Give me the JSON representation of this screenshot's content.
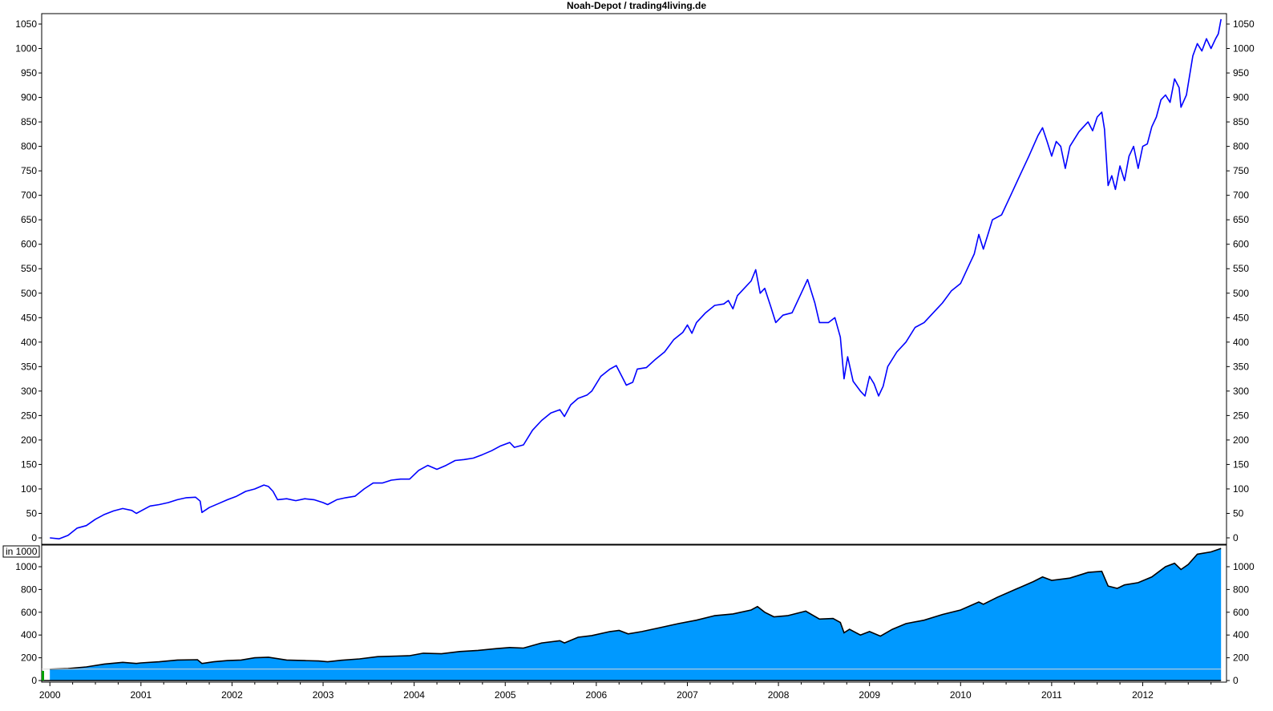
{
  "chart_data": [
    {
      "type": "line",
      "title": "Noah-Depot / trading4living.de",
      "ylim": [
        0,
        1060
      ],
      "y_ticks": [
        0,
        50,
        100,
        150,
        200,
        250,
        300,
        350,
        400,
        450,
        500,
        550,
        600,
        650,
        700,
        750,
        800,
        850,
        900,
        950,
        1000,
        1050
      ],
      "y_tick_labels": [
        "0",
        "50",
        "100",
        "150",
        "200",
        "250",
        "300",
        "350",
        "400",
        "450",
        "500",
        "550",
        "600",
        "650",
        "700",
        "750",
        "800",
        "850",
        "900",
        "950",
        "1000",
        "1050"
      ],
      "x_ticks": [
        2000,
        2001,
        2002,
        2003,
        2004,
        2005,
        2006,
        2007,
        2008,
        2009,
        2010,
        2011,
        2012
      ],
      "x_tick_labels": [
        "2000",
        "2001",
        "2002",
        "2003",
        "2004",
        "2005",
        "2006",
        "2007",
        "2008",
        "2009",
        "2010",
        "2011",
        "2012"
      ],
      "grid": false,
      "series": [
        {
          "color": "#0000ff",
          "points": [
            [
              2000.0,
              0
            ],
            [
              2000.1,
              -2
            ],
            [
              2000.2,
              5
            ],
            [
              2000.3,
              20
            ],
            [
              2000.4,
              25
            ],
            [
              2000.5,
              38
            ],
            [
              2000.6,
              48
            ],
            [
              2000.7,
              55
            ],
            [
              2000.8,
              60
            ],
            [
              2000.9,
              56
            ],
            [
              2000.95,
              50
            ],
            [
              2001.0,
              55
            ],
            [
              2001.1,
              65
            ],
            [
              2001.2,
              68
            ],
            [
              2001.3,
              72
            ],
            [
              2001.4,
              78
            ],
            [
              2001.5,
              82
            ],
            [
              2001.6,
              83
            ],
            [
              2001.65,
              75
            ],
            [
              2001.67,
              52
            ],
            [
              2001.75,
              62
            ],
            [
              2001.85,
              70
            ],
            [
              2001.95,
              78
            ],
            [
              2002.05,
              85
            ],
            [
              2002.15,
              95
            ],
            [
              2002.25,
              100
            ],
            [
              2002.35,
              108
            ],
            [
              2002.4,
              105
            ],
            [
              2002.45,
              95
            ],
            [
              2002.5,
              78
            ],
            [
              2002.6,
              80
            ],
            [
              2002.7,
              76
            ],
            [
              2002.8,
              80
            ],
            [
              2002.9,
              78
            ],
            [
              2003.0,
              72
            ],
            [
              2003.05,
              68
            ],
            [
              2003.15,
              78
            ],
            [
              2003.25,
              82
            ],
            [
              2003.35,
              85
            ],
            [
              2003.45,
              100
            ],
            [
              2003.55,
              112
            ],
            [
              2003.65,
              112
            ],
            [
              2003.75,
              118
            ],
            [
              2003.85,
              120
            ],
            [
              2003.95,
              120
            ],
            [
              2004.05,
              138
            ],
            [
              2004.15,
              148
            ],
            [
              2004.25,
              140
            ],
            [
              2004.35,
              148
            ],
            [
              2004.45,
              158
            ],
            [
              2004.55,
              160
            ],
            [
              2004.65,
              163
            ],
            [
              2004.75,
              170
            ],
            [
              2004.85,
              178
            ],
            [
              2004.95,
              188
            ],
            [
              2005.05,
              195
            ],
            [
              2005.1,
              185
            ],
            [
              2005.2,
              190
            ],
            [
              2005.3,
              220
            ],
            [
              2005.4,
              240
            ],
            [
              2005.5,
              255
            ],
            [
              2005.6,
              262
            ],
            [
              2005.65,
              248
            ],
            [
              2005.72,
              272
            ],
            [
              2005.8,
              285
            ],
            [
              2005.9,
              292
            ],
            [
              2005.95,
              300
            ],
            [
              2006.05,
              330
            ],
            [
              2006.15,
              345
            ],
            [
              2006.22,
              352
            ],
            [
              2006.28,
              330
            ],
            [
              2006.33,
              312
            ],
            [
              2006.4,
              318
            ],
            [
              2006.45,
              345
            ],
            [
              2006.55,
              348
            ],
            [
              2006.65,
              365
            ],
            [
              2006.75,
              380
            ],
            [
              2006.85,
              405
            ],
            [
              2006.95,
              420
            ],
            [
              2007.0,
              435
            ],
            [
              2007.05,
              418
            ],
            [
              2007.1,
              440
            ],
            [
              2007.2,
              460
            ],
            [
              2007.3,
              475
            ],
            [
              2007.4,
              478
            ],
            [
              2007.45,
              485
            ],
            [
              2007.5,
              468
            ],
            [
              2007.55,
              495
            ],
            [
              2007.6,
              505
            ],
            [
              2007.7,
              525
            ],
            [
              2007.75,
              548
            ],
            [
              2007.8,
              500
            ],
            [
              2007.85,
              510
            ],
            [
              2007.92,
              470
            ],
            [
              2007.97,
              440
            ],
            [
              2008.05,
              455
            ],
            [
              2008.15,
              460
            ],
            [
              2008.25,
              500
            ],
            [
              2008.32,
              528
            ],
            [
              2008.4,
              480
            ],
            [
              2008.45,
              440
            ],
            [
              2008.55,
              440
            ],
            [
              2008.62,
              450
            ],
            [
              2008.68,
              410
            ],
            [
              2008.72,
              325
            ],
            [
              2008.76,
              370
            ],
            [
              2008.82,
              320
            ],
            [
              2008.9,
              300
            ],
            [
              2008.95,
              290
            ],
            [
              2009.0,
              330
            ],
            [
              2009.05,
              315
            ],
            [
              2009.1,
              290
            ],
            [
              2009.15,
              310
            ],
            [
              2009.2,
              350
            ],
            [
              2009.3,
              380
            ],
            [
              2009.4,
              400
            ],
            [
              2009.5,
              430
            ],
            [
              2009.6,
              440
            ],
            [
              2009.7,
              460
            ],
            [
              2009.8,
              480
            ],
            [
              2009.9,
              505
            ],
            [
              2010.0,
              520
            ],
            [
              2010.1,
              560
            ],
            [
              2010.15,
              580
            ],
            [
              2010.2,
              620
            ],
            [
              2010.25,
              590
            ],
            [
              2010.3,
              620
            ],
            [
              2010.35,
              650
            ],
            [
              2010.45,
              660
            ],
            [
              2010.55,
              700
            ],
            [
              2010.65,
              740
            ],
            [
              2010.75,
              780
            ],
            [
              2010.85,
              822
            ],
            [
              2010.9,
              838
            ],
            [
              2010.95,
              810
            ],
            [
              2011.0,
              780
            ],
            [
              2011.05,
              810
            ],
            [
              2011.1,
              800
            ],
            [
              2011.15,
              755
            ],
            [
              2011.2,
              800
            ],
            [
              2011.3,
              830
            ],
            [
              2011.4,
              850
            ],
            [
              2011.45,
              832
            ],
            [
              2011.5,
              860
            ],
            [
              2011.55,
              870
            ],
            [
              2011.58,
              835
            ],
            [
              2011.62,
              720
            ],
            [
              2011.66,
              740
            ],
            [
              2011.7,
              712
            ],
            [
              2011.75,
              760
            ],
            [
              2011.8,
              730
            ],
            [
              2011.85,
              780
            ],
            [
              2011.9,
              800
            ],
            [
              2011.95,
              755
            ],
            [
              2012.0,
              800
            ],
            [
              2012.05,
              805
            ],
            [
              2012.1,
              840
            ],
            [
              2012.15,
              860
            ],
            [
              2012.2,
              895
            ],
            [
              2012.25,
              905
            ],
            [
              2012.3,
              890
            ],
            [
              2012.35,
              938
            ],
            [
              2012.4,
              920
            ],
            [
              2012.42,
              880
            ],
            [
              2012.48,
              905
            ],
            [
              2012.55,
              985
            ],
            [
              2012.6,
              1010
            ],
            [
              2012.65,
              995
            ],
            [
              2012.7,
              1020
            ],
            [
              2012.75,
              1000
            ],
            [
              2012.8,
              1020
            ],
            [
              2012.83,
              1030
            ],
            [
              2012.86,
              1060
            ]
          ]
        }
      ]
    },
    {
      "type": "area",
      "unit_label": "in 1000",
      "ylim": [
        0,
        1150
      ],
      "y_ticks": [
        0,
        200,
        400,
        600,
        800,
        1000
      ],
      "y_tick_labels": [
        "0",
        "200",
        "400",
        "600",
        "800",
        "1000"
      ],
      "reference_line": 100,
      "grid": false,
      "series": [
        {
          "color": "#0099ff",
          "points": [
            [
              2000.0,
              100
            ],
            [
              2000.2,
              105
            ],
            [
              2000.4,
              120
            ],
            [
              2000.6,
              145
            ],
            [
              2000.8,
              160
            ],
            [
              2000.95,
              150
            ],
            [
              2001.0,
              155
            ],
            [
              2001.2,
              165
            ],
            [
              2001.4,
              180
            ],
            [
              2001.62,
              183
            ],
            [
              2001.67,
              150
            ],
            [
              2001.8,
              165
            ],
            [
              2001.95,
              175
            ],
            [
              2002.1,
              180
            ],
            [
              2002.25,
              200
            ],
            [
              2002.4,
              205
            ],
            [
              2002.6,
              180
            ],
            [
              2002.8,
              175
            ],
            [
              2002.95,
              172
            ],
            [
              2003.05,
              165
            ],
            [
              2003.2,
              178
            ],
            [
              2003.4,
              190
            ],
            [
              2003.6,
              210
            ],
            [
              2003.8,
              215
            ],
            [
              2003.95,
              218
            ],
            [
              2004.1,
              240
            ],
            [
              2004.3,
              235
            ],
            [
              2004.5,
              255
            ],
            [
              2004.7,
              265
            ],
            [
              2004.9,
              280
            ],
            [
              2005.05,
              290
            ],
            [
              2005.2,
              285
            ],
            [
              2005.4,
              330
            ],
            [
              2005.6,
              350
            ],
            [
              2005.65,
              330
            ],
            [
              2005.8,
              380
            ],
            [
              2005.95,
              395
            ],
            [
              2006.15,
              430
            ],
            [
              2006.25,
              440
            ],
            [
              2006.35,
              410
            ],
            [
              2006.5,
              430
            ],
            [
              2006.7,
              465
            ],
            [
              2006.9,
              500
            ],
            [
              2007.1,
              530
            ],
            [
              2007.3,
              570
            ],
            [
              2007.5,
              585
            ],
            [
              2007.7,
              620
            ],
            [
              2007.77,
              650
            ],
            [
              2007.85,
              600
            ],
            [
              2007.95,
              560
            ],
            [
              2008.1,
              570
            ],
            [
              2008.3,
              610
            ],
            [
              2008.45,
              540
            ],
            [
              2008.6,
              545
            ],
            [
              2008.68,
              510
            ],
            [
              2008.72,
              420
            ],
            [
              2008.78,
              450
            ],
            [
              2008.9,
              400
            ],
            [
              2009.0,
              430
            ],
            [
              2009.12,
              390
            ],
            [
              2009.25,
              450
            ],
            [
              2009.4,
              500
            ],
            [
              2009.6,
              530
            ],
            [
              2009.8,
              580
            ],
            [
              2010.0,
              620
            ],
            [
              2010.2,
              690
            ],
            [
              2010.25,
              670
            ],
            [
              2010.4,
              730
            ],
            [
              2010.6,
              800
            ],
            [
              2010.8,
              870
            ],
            [
              2010.9,
              910
            ],
            [
              2011.0,
              880
            ],
            [
              2011.2,
              900
            ],
            [
              2011.4,
              950
            ],
            [
              2011.55,
              960
            ],
            [
              2011.62,
              830
            ],
            [
              2011.72,
              810
            ],
            [
              2011.8,
              840
            ],
            [
              2011.95,
              860
            ],
            [
              2012.1,
              910
            ],
            [
              2012.25,
              1000
            ],
            [
              2012.35,
              1030
            ],
            [
              2012.42,
              975
            ],
            [
              2012.5,
              1020
            ],
            [
              2012.6,
              1110
            ],
            [
              2012.75,
              1130
            ],
            [
              2012.86,
              1160
            ]
          ]
        }
      ]
    }
  ]
}
